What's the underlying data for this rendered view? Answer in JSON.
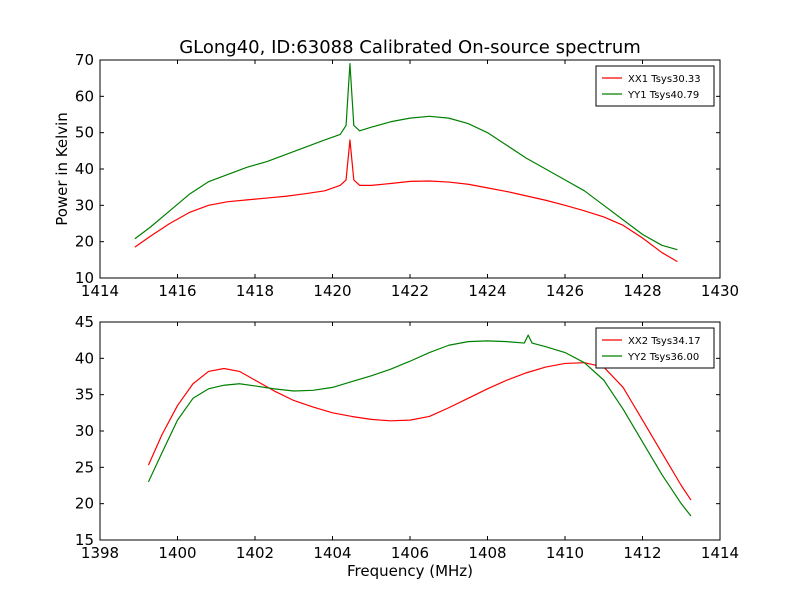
{
  "figure": {
    "title": "GLong40, ID:63088 Calibrated On-source spectrum",
    "ylabel": "Power in Kelvin",
    "xlabel": "Frequency (MHz)"
  },
  "chart_data": [
    {
      "type": "line",
      "xlim": [
        1414,
        1430
      ],
      "ylim": [
        10,
        70
      ],
      "xticks": [
        1414,
        1416,
        1418,
        1420,
        1422,
        1424,
        1426,
        1428,
        1430
      ],
      "yticks": [
        10,
        20,
        30,
        40,
        50,
        60,
        70
      ],
      "grid": false,
      "legend_position": "top-right",
      "series": [
        {
          "name": "XX1 Tsys30.33",
          "color": "#ff0000",
          "x": [
            1414.9,
            1415.3,
            1415.8,
            1416.3,
            1416.8,
            1417.3,
            1417.8,
            1418.3,
            1418.8,
            1419.3,
            1419.8,
            1420.2,
            1420.35,
            1420.45,
            1420.55,
            1420.7,
            1421.0,
            1421.5,
            1422.0,
            1422.5,
            1423.0,
            1423.5,
            1424.0,
            1424.5,
            1425.0,
            1425.5,
            1426.0,
            1426.5,
            1427.0,
            1427.5,
            1428.0,
            1428.5,
            1428.9
          ],
          "y": [
            18.5,
            21.5,
            25.0,
            28.0,
            30.0,
            31.0,
            31.5,
            32.0,
            32.5,
            33.2,
            34.0,
            35.5,
            37.0,
            48.0,
            37.0,
            35.5,
            35.5,
            36.0,
            36.6,
            36.7,
            36.4,
            35.8,
            34.8,
            33.8,
            32.6,
            31.4,
            30.0,
            28.5,
            26.8,
            24.5,
            21.0,
            17.0,
            14.5
          ]
        },
        {
          "name": "YY1 Tsys40.79",
          "color": "#008000",
          "x": [
            1414.9,
            1415.3,
            1415.8,
            1416.3,
            1416.8,
            1417.3,
            1417.8,
            1418.3,
            1418.8,
            1419.3,
            1419.8,
            1420.2,
            1420.35,
            1420.45,
            1420.55,
            1420.7,
            1421.0,
            1421.5,
            1422.0,
            1422.5,
            1423.0,
            1423.5,
            1424.0,
            1424.5,
            1425.0,
            1425.5,
            1426.0,
            1426.5,
            1427.0,
            1427.5,
            1428.0,
            1428.5,
            1428.9
          ],
          "y": [
            20.8,
            24.0,
            28.5,
            33.0,
            36.5,
            38.5,
            40.5,
            42.0,
            44.0,
            46.0,
            48.0,
            49.5,
            52.0,
            69.0,
            52.0,
            50.5,
            51.5,
            53.0,
            54.0,
            54.5,
            54.0,
            52.5,
            50.0,
            46.5,
            43.0,
            40.0,
            37.0,
            34.0,
            30.0,
            26.0,
            22.0,
            19.0,
            17.8
          ]
        }
      ]
    },
    {
      "type": "line",
      "xlim": [
        1398,
        1414
      ],
      "ylim": [
        15,
        45
      ],
      "xticks": [
        1398,
        1400,
        1402,
        1404,
        1406,
        1408,
        1410,
        1412,
        1414
      ],
      "yticks": [
        15,
        20,
        25,
        30,
        35,
        40,
        45
      ],
      "grid": false,
      "legend_position": "top-right",
      "series": [
        {
          "name": "XX2 Tsys34.17",
          "color": "#ff0000",
          "x": [
            1399.25,
            1399.6,
            1400.0,
            1400.4,
            1400.8,
            1401.2,
            1401.6,
            1402.0,
            1402.5,
            1403.0,
            1403.5,
            1404.0,
            1404.5,
            1405.0,
            1405.5,
            1406.0,
            1406.5,
            1407.0,
            1407.5,
            1408.0,
            1408.5,
            1409.0,
            1409.5,
            1410.0,
            1410.5,
            1411.0,
            1411.5,
            1412.0,
            1412.5,
            1413.0,
            1413.25
          ],
          "y": [
            25.3,
            29.5,
            33.5,
            36.5,
            38.2,
            38.6,
            38.2,
            37.0,
            35.5,
            34.2,
            33.3,
            32.5,
            32.0,
            31.6,
            31.4,
            31.5,
            32.0,
            33.2,
            34.5,
            35.8,
            37.0,
            38.0,
            38.8,
            39.3,
            39.4,
            38.8,
            36.0,
            31.5,
            27.0,
            22.5,
            20.5
          ]
        },
        {
          "name": "YY2 Tsys36.00",
          "color": "#008000",
          "x": [
            1399.25,
            1399.6,
            1400.0,
            1400.4,
            1400.8,
            1401.2,
            1401.6,
            1402.0,
            1402.5,
            1403.0,
            1403.5,
            1404.0,
            1404.5,
            1405.0,
            1405.5,
            1406.0,
            1406.5,
            1407.0,
            1407.5,
            1408.0,
            1408.5,
            1408.95,
            1409.05,
            1409.15,
            1409.5,
            1410.0,
            1410.5,
            1411.0,
            1411.5,
            1412.0,
            1412.5,
            1413.0,
            1413.25
          ],
          "y": [
            23.0,
            27.0,
            31.5,
            34.5,
            35.8,
            36.3,
            36.5,
            36.2,
            35.8,
            35.5,
            35.6,
            36.0,
            36.8,
            37.6,
            38.5,
            39.6,
            40.8,
            41.8,
            42.3,
            42.4,
            42.3,
            42.1,
            43.2,
            42.1,
            41.6,
            40.8,
            39.4,
            37.0,
            33.0,
            28.5,
            24.0,
            20.0,
            18.3
          ]
        }
      ]
    }
  ]
}
